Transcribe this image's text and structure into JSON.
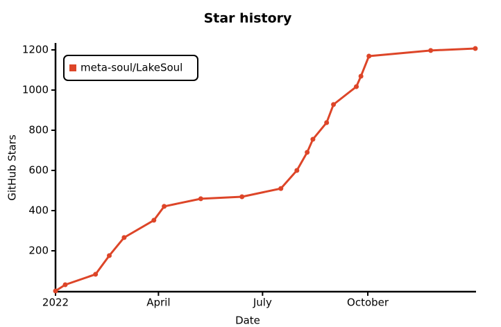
{
  "chart_data": {
    "type": "line",
    "title": "Star history",
    "x_label": "Date",
    "y_label": "GitHub Stars",
    "x": [
      0,
      8.5,
      35,
      47,
      60,
      86,
      95,
      127,
      163,
      197,
      211,
      220,
      225,
      237,
      243,
      263,
      267,
      274,
      328,
      367
    ],
    "series": [
      {
        "name": "meta-soul/LakeSoul",
        "color": "#dd4528",
        "values": [
          0,
          31,
          83,
          176,
          266,
          352,
          421,
          459,
          469,
          510,
          600,
          690,
          755,
          838,
          928,
          1017,
          1069,
          1169,
          1197,
          1207
        ]
      }
    ],
    "xlim": [
      0,
      367
    ],
    "xticks": [
      {
        "value": 0,
        "label": "2022"
      },
      {
        "value": 90,
        "label": "April"
      },
      {
        "value": 181,
        "label": "July"
      },
      {
        "value": 273,
        "label": "October"
      }
    ],
    "ylim": [
      0,
      1200
    ],
    "yticks": [
      200,
      400,
      600,
      800,
      1000,
      1200
    ],
    "grid": false,
    "legend": "upper left"
  }
}
